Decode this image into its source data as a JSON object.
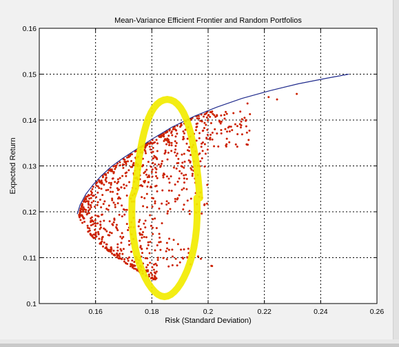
{
  "chart_data": {
    "type": "scatter",
    "title": "Mean-Variance Efficient Frontier and Random Portfolios",
    "xlabel": "Risk (Standard Deviation)",
    "ylabel": "Expected Return",
    "xlim": [
      0.14,
      0.26
    ],
    "ylim": [
      0.1,
      0.16
    ],
    "xticks": [
      0.16,
      0.18,
      0.2,
      0.22,
      0.24,
      0.26
    ],
    "xtick_labels": [
      "0.16",
      "0.18",
      "0.2",
      "0.22",
      "0.24",
      "0.26"
    ],
    "yticks": [
      0.1,
      0.11,
      0.12,
      0.13,
      0.14,
      0.15,
      0.16
    ],
    "ytick_labels": [
      "0.1",
      "0.11",
      "0.12",
      "0.13",
      "0.14",
      "0.15",
      "0.16"
    ],
    "grid": true,
    "frontier": {
      "color": "#1f2a8c",
      "x": [
        0.1535,
        0.1545,
        0.1565,
        0.159,
        0.162,
        0.1655,
        0.17,
        0.175,
        0.18,
        0.187,
        0.195,
        0.203,
        0.212,
        0.222,
        0.232,
        0.242,
        0.25
      ],
      "y": [
        0.1195,
        0.1215,
        0.1238,
        0.1258,
        0.1278,
        0.1298,
        0.1318,
        0.1338,
        0.1358,
        0.1384,
        0.1408,
        0.1428,
        0.1447,
        0.1464,
        0.1479,
        0.1491,
        0.15
      ]
    },
    "scatter_cloud": {
      "color": "#cc2200",
      "count": 900,
      "dense_region": {
        "x": [
          0.152,
          0.168
        ],
        "y": [
          0.108,
          0.132
        ]
      },
      "sparse_region": {
        "x": [
          0.168,
          0.215
        ],
        "y": [
          0.104,
          0.142
        ]
      }
    },
    "highlight": {
      "shape": "ellipse-loop",
      "color": "#f2ec00",
      "center": [
        0.1845,
        0.123
      ],
      "radii": [
        0.0115,
        0.0215
      ]
    },
    "outliers": [
      {
        "x": 0.2215,
        "y": 0.145
      },
      {
        "x": 0.2245,
        "y": 0.1445
      },
      {
        "x": 0.2315,
        "y": 0.1457
      },
      {
        "x": 0.214,
        "y": 0.1436
      },
      {
        "x": 0.209,
        "y": 0.1415
      }
    ]
  }
}
